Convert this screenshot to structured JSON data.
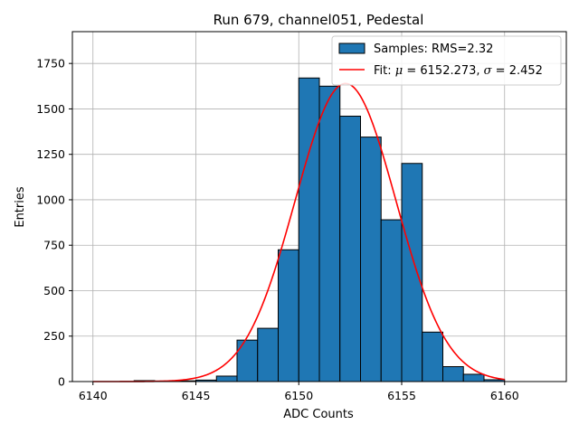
{
  "chart_data": {
    "type": "bar",
    "title": "Run 679, channel051, Pedestal",
    "xlabel": "ADC Counts",
    "ylabel": "Entries",
    "xlim": [
      6139,
      6163
    ],
    "ylim": [
      0,
      1925
    ],
    "xticks": [
      6140,
      6145,
      6150,
      6155,
      6160
    ],
    "yticks": [
      0,
      250,
      500,
      750,
      1000,
      1250,
      1500,
      1750
    ],
    "grid": true,
    "legend_position": "top-right",
    "colors": {
      "bar_fill": "#1f77b4",
      "bar_edge": "#000000",
      "fit_line": "#ff0000",
      "grid": "#b0b0b0"
    },
    "histogram": {
      "name": "Samples: RMS=2.32",
      "bin_width": 1,
      "bin_edges_start": [
        6142,
        6143,
        6144,
        6145,
        6146,
        6147,
        6148,
        6149,
        6150,
        6151,
        6152,
        6153,
        6154,
        6155,
        6156,
        6157,
        6158,
        6159
      ],
      "values": [
        5,
        3,
        4,
        8,
        30,
        228,
        293,
        725,
        1670,
        1625,
        1460,
        1345,
        890,
        1200,
        272,
        82,
        40,
        10
      ]
    },
    "fit": {
      "label_prefix": "Fit: ",
      "label_mu": "μ",
      "label_mu_value": " = 6152.273, ",
      "label_sigma": "σ",
      "label_sigma_value": " = 2.452",
      "mu": 6152.273,
      "sigma": 2.452,
      "peak": 1640,
      "x_range": [
        6140,
        6160
      ]
    }
  }
}
